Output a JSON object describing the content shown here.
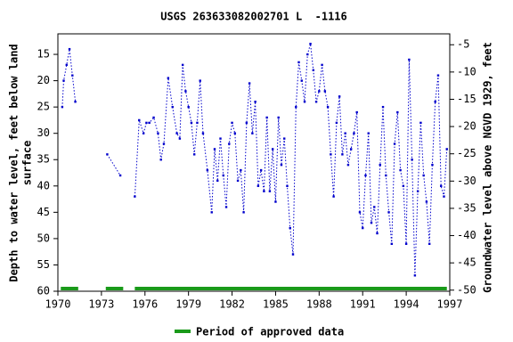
{
  "chart_data": {
    "type": "line",
    "title": "USGS 263633082002701 L  -1116",
    "y_label": [
      "Depth to water level, feet below land",
      "surface"
    ],
    "y2_label": "Groundwater level above NGVD 1929, feet",
    "xlim": [
      1970,
      1997
    ],
    "xticks": [
      1970,
      1973,
      1976,
      1979,
      1982,
      1985,
      1988,
      1991,
      1994,
      1997
    ],
    "ylim": [
      60,
      11.1
    ],
    "yticks": [
      15,
      20,
      25,
      30,
      35,
      40,
      45,
      50,
      55,
      60
    ],
    "y2lim": [
      -50.2,
      -3.0
    ],
    "y2ticks": [
      -5,
      -10,
      -15,
      -20,
      -25,
      -30,
      -35,
      -40,
      -45,
      -50
    ],
    "x": [
      1970.3,
      1970.4,
      1970.6,
      1970.8,
      1971.0,
      1971.2,
      null,
      1973.4,
      1974.3,
      null,
      1975.3,
      1975.6,
      1975.9,
      1976.1,
      1976.3,
      1976.6,
      1976.9,
      1977.1,
      1977.3,
      1977.6,
      1977.9,
      1978.2,
      1978.4,
      1978.6,
      1978.8,
      1979.0,
      1979.2,
      1979.4,
      1979.6,
      1979.8,
      1980.0,
      1980.3,
      1980.6,
      1980.8,
      1981.0,
      1981.2,
      1981.4,
      1981.6,
      1981.8,
      1982.0,
      1982.2,
      1982.4,
      1982.6,
      1982.8,
      1983.0,
      1983.2,
      1983.4,
      1983.6,
      1983.8,
      1984.0,
      1984.2,
      1984.4,
      1984.6,
      1984.8,
      1985.0,
      1985.2,
      1985.4,
      1985.6,
      1985.8,
      1986.0,
      1986.2,
      1986.4,
      1986.6,
      1986.8,
      1987.0,
      1987.2,
      1987.4,
      1987.6,
      1987.8,
      1988.0,
      1988.2,
      1988.4,
      1988.6,
      1988.8,
      1989.0,
      1989.2,
      1989.4,
      1989.6,
      1989.8,
      1990.0,
      1990.2,
      1990.4,
      1990.6,
      1990.8,
      1991.0,
      1991.2,
      1991.4,
      1991.6,
      1991.8,
      1992.0,
      1992.2,
      1992.4,
      1992.6,
      1992.8,
      1993.0,
      1993.2,
      1993.4,
      1993.6,
      1993.8,
      1994.0,
      1994.2,
      1994.4,
      1994.6,
      1994.8,
      1995.0,
      1995.2,
      1995.4,
      1995.6,
      1995.8,
      1996.0,
      1996.2,
      1996.4,
      1996.6,
      1996.8
    ],
    "series": [
      {
        "color": "#0000cc",
        "values": [
          25,
          20,
          17,
          14,
          19,
          24,
          null,
          34,
          38,
          null,
          42,
          27.5,
          30,
          28,
          28,
          27,
          30,
          35,
          32,
          19.5,
          25,
          30,
          31,
          17,
          22,
          25,
          28,
          34,
          28,
          20,
          30,
          37,
          45,
          33,
          39,
          31,
          38,
          44,
          32,
          28,
          30,
          39,
          37,
          45,
          28,
          20.5,
          30,
          24,
          40,
          37,
          41,
          27,
          41,
          33,
          43,
          27,
          36,
          31,
          40,
          48,
          53,
          25,
          16.5,
          20,
          24,
          15,
          13,
          18,
          24,
          22,
          17,
          22,
          25,
          34,
          42,
          28,
          23,
          34,
          30,
          36,
          33,
          30,
          26,
          45,
          48,
          38,
          30,
          47,
          44,
          49,
          36,
          25,
          38,
          45,
          51,
          32,
          26,
          37,
          40,
          51,
          16,
          35,
          57,
          41,
          28,
          38,
          43,
          51,
          36,
          24,
          19,
          40,
          42,
          33
        ]
      }
    ],
    "approved_periods": {
      "name": "Period of approved data",
      "color": "#1a9a1a",
      "ranges": [
        [
          1970.2,
          1971.4
        ],
        [
          1973.3,
          1974.5
        ],
        [
          1975.3,
          1996.8
        ]
      ]
    }
  }
}
